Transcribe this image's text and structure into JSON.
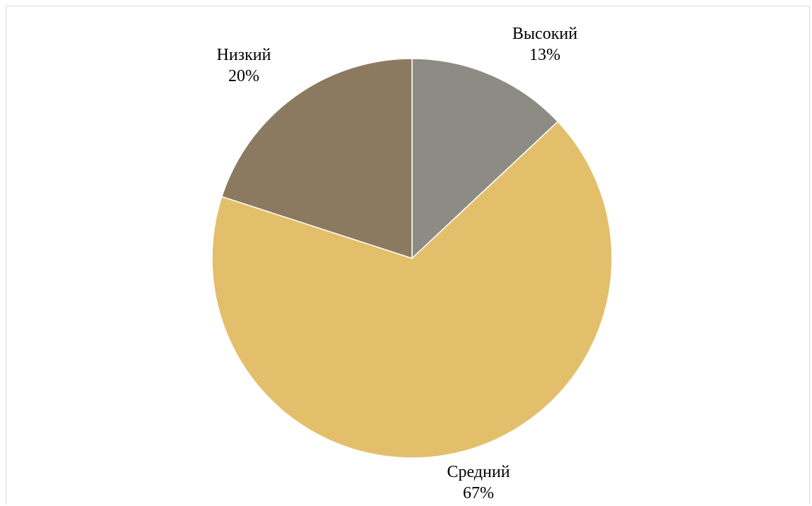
{
  "chart_data": {
    "type": "pie",
    "categories": [
      "Высокий",
      "Средний",
      "Низкий"
    ],
    "values": [
      13,
      67,
      20
    ],
    "labels": [
      {
        "name": "Высокий",
        "value": "13%"
      },
      {
        "name": "Средний",
        "value": "67%"
      },
      {
        "name": "Низкий",
        "value": "20%"
      }
    ],
    "colors": [
      "#8c8c84",
      "#e3bf6b",
      "#8b7a5f"
    ],
    "start_angle": "12 o'clock",
    "direction": "clockwise",
    "legend": "none"
  }
}
